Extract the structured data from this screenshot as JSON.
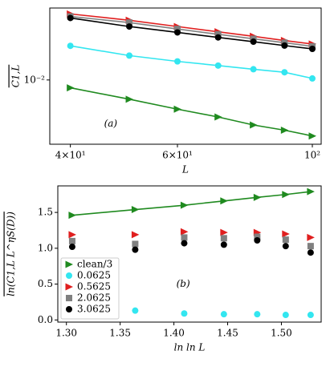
{
  "chart_data": [
    {
      "type": "scatter",
      "annotation": "(a)",
      "x_label": "L",
      "y_label": "C1,L",
      "x": [
        40,
        50,
        60,
        70,
        80,
        90,
        100
      ],
      "xlog": true,
      "ylog": true,
      "xlim": [
        37,
        103.4
      ],
      "ylim": [
        0.0029,
        0.04
      ],
      "xticks": [
        {
          "value": 40,
          "label": "4×10¹"
        },
        {
          "value": 60,
          "label": "6×10¹"
        },
        {
          "value": 100,
          "label": "10²"
        }
      ],
      "yticks": [
        {
          "value": 0.01,
          "label": "10⁻²"
        }
      ],
      "series": [
        {
          "color": "#1f8a1f",
          "marker": "triangle",
          "line": true,
          "values": [
            0.0086,
            0.0069,
            0.0057,
            0.0049,
            0.0042,
            0.0038,
            0.0034
          ]
        },
        {
          "color": "#33e6f0",
          "marker": "circle",
          "line": true,
          "values": [
            0.0193,
            0.016,
            0.0143,
            0.0132,
            0.0123,
            0.0116,
            0.0103
          ]
        },
        {
          "color": "#e01f1f",
          "marker": "triangle",
          "line": true,
          "values": [
            0.0357,
            0.0316,
            0.028,
            0.0253,
            0.0232,
            0.0214,
            0.02
          ]
        },
        {
          "color": "#808080",
          "marker": "square",
          "line": true,
          "values": [
            0.034,
            0.0302,
            0.0267,
            0.0241,
            0.0221,
            0.0205,
            0.0191
          ]
        },
        {
          "color": "#000000",
          "marker": "circle",
          "line": true,
          "values": [
            0.033,
            0.028,
            0.025,
            0.0227,
            0.0209,
            0.0194,
            0.0182
          ]
        }
      ]
    },
    {
      "type": "scatter",
      "annotation": "(b)",
      "x_label": "ln ln L",
      "y_label": "ln(C1,L L^ηS(D))",
      "x": [
        1.3054,
        1.364,
        1.4096,
        1.4465,
        1.4775,
        1.504,
        1.5272
      ],
      "xlim": [
        1.292,
        1.537
      ],
      "ylim": [
        -0.03,
        1.87
      ],
      "xticks": [
        {
          "value": 1.3,
          "label": "1.30"
        },
        1.35,
        {
          "value": 1.4,
          "label": "1.40"
        },
        1.45,
        {
          "value": 1.5,
          "label": "1.50"
        }
      ],
      "yticks": [
        {
          "value": 0,
          "label": "0.0"
        },
        0.5,
        {
          "value": 1,
          "label": "1.0"
        },
        1.5
      ],
      "legend": "lower-left",
      "series": [
        {
          "name": "clean/3",
          "color": "#1f8a1f",
          "marker": "triangle",
          "line": true,
          "values": [
            1.46,
            1.54,
            1.6,
            1.66,
            1.71,
            1.75,
            1.79
          ]
        },
        {
          "name": "0.0625",
          "color": "#33e6f0",
          "marker": "circle",
          "values": [
            null,
            0.13,
            0.09,
            0.08,
            0.08,
            0.07,
            0.07
          ]
        },
        {
          "name": "0.5625",
          "color": "#e01f1f",
          "marker": "triangle",
          "values": [
            1.19,
            1.19,
            1.23,
            1.22,
            1.22,
            1.2,
            1.15
          ]
        },
        {
          "name": "2.0625",
          "color": "#808080",
          "marker": "square",
          "values": [
            1.1,
            1.06,
            1.15,
            1.14,
            1.16,
            1.12,
            1.03
          ]
        },
        {
          "name": "3.0625",
          "color": "#000000",
          "marker": "circle",
          "values": [
            1.02,
            0.98,
            1.07,
            1.05,
            1.11,
            1.03,
            0.94
          ]
        }
      ]
    }
  ]
}
